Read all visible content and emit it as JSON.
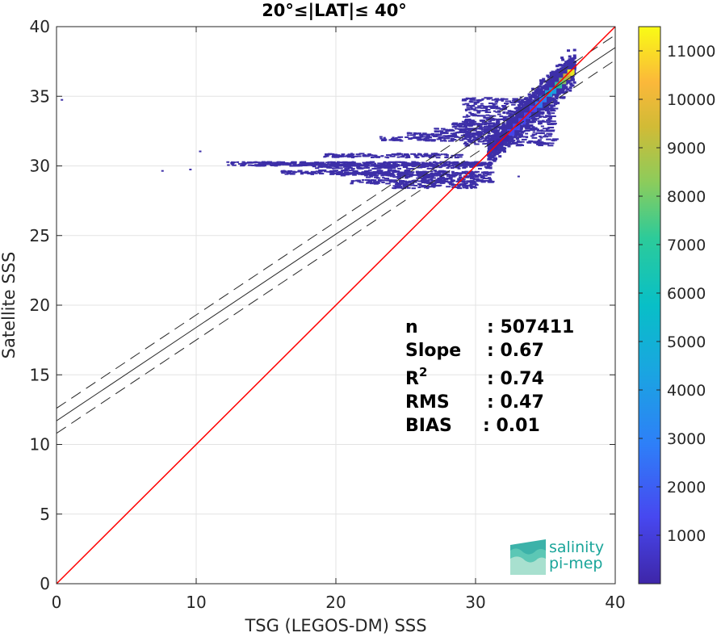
{
  "chart_data": {
    "type": "heatmap",
    "title": "20°≤|LAT|≤ 40°",
    "xlabel": "TSG (LEGOS-DM) SSS",
    "ylabel": "Satellite SSS",
    "xlim": [
      0,
      40
    ],
    "ylim": [
      0,
      40
    ],
    "xticks": [
      "0",
      "10",
      "20",
      "30",
      "40"
    ],
    "yticks": [
      "0",
      "5",
      "10",
      "15",
      "20",
      "25",
      "30",
      "35",
      "40"
    ],
    "grid": true,
    "stats": {
      "n": "507411",
      "slope": "0.67",
      "r2": "0.74",
      "rms": "0.47",
      "bias": "0.01"
    },
    "stat_labels": {
      "n": "n",
      "slope": "Slope",
      "r2_base": "R",
      "r2_sup": "2",
      "rms": "RMS",
      "bias": "BIAS"
    },
    "regression": {
      "slope": 0.67,
      "intercept": 11.7,
      "band_offset": 0.9
    },
    "identity_line": {
      "color": "#ff0000"
    },
    "colorbar": {
      "min": 0,
      "max": 11500,
      "ticks": [
        "1000",
        "2000",
        "3000",
        "4000",
        "5000",
        "6000",
        "7000",
        "8000",
        "9000",
        "10000",
        "11000"
      ],
      "colormap": "parula"
    },
    "density_points": [
      [
        36.8,
        36.7,
        11000
      ],
      [
        36.5,
        36.4,
        9000
      ],
      [
        36.2,
        36.1,
        7500
      ],
      [
        35.9,
        35.8,
        6000
      ],
      [
        35.5,
        35.4,
        4500
      ],
      [
        35.2,
        35.2,
        3800
      ],
      [
        34.8,
        34.8,
        3000
      ],
      [
        34.5,
        34.4,
        2600
      ],
      [
        34.1,
        34.1,
        2200
      ],
      [
        33.7,
        33.6,
        1900
      ],
      [
        33.3,
        33.2,
        1600
      ],
      [
        32.9,
        32.8,
        1400
      ],
      [
        32.5,
        32.4,
        1200
      ],
      [
        32.1,
        32.0,
        1000
      ],
      [
        31.7,
        31.7,
        900
      ],
      [
        31.3,
        31.4,
        800
      ]
    ],
    "scatter_region": {
      "color": "#3d2fa8"
    }
  },
  "logo": {
    "line1": "salinity",
    "line2": "pi-mep"
  },
  "colors": {
    "grid": "#e3e3e3",
    "axis": "#262626",
    "regression": "#262626",
    "identity": "#ff0000",
    "logo": "#1aa59a"
  }
}
